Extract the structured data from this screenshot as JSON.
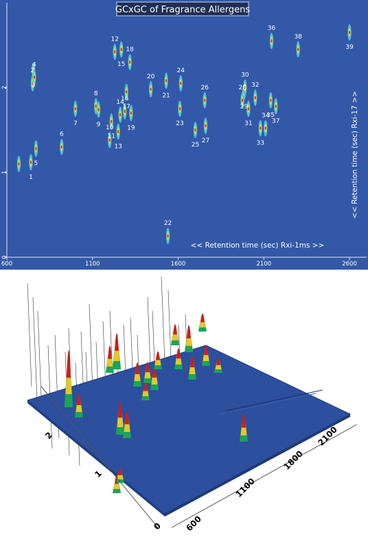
{
  "chart_data": [
    {
      "type": "scatter",
      "title": "GCxGC of Fragrance Allergens",
      "xlabel": "<< Retention time (sec) Rxi-1ms >>",
      "ylabel": "<< Retention time (sec) Rxi-17 >>",
      "xlim": [
        600,
        2700
      ],
      "ylim": [
        0,
        3
      ],
      "xticks": [
        "600",
        "1100",
        "1600",
        "2100",
        "2600"
      ],
      "yticks": [
        "0",
        "1",
        "2"
      ],
      "background": "#3358a8",
      "points": [
        {
          "label": "1",
          "x": 740,
          "y": 1.12
        },
        {
          "label": "2",
          "x": 750,
          "y": 2.05
        },
        {
          "label": "3",
          "x": 755,
          "y": 2.2
        },
        {
          "label": "4",
          "x": 760,
          "y": 2.12
        },
        {
          "label": "5",
          "x": 770,
          "y": 1.28
        },
        {
          "label": "6",
          "x": 920,
          "y": 1.3
        },
        {
          "label": "7",
          "x": 1000,
          "y": 1.75
        },
        {
          "label": "8",
          "x": 1120,
          "y": 1.78
        },
        {
          "label": "9",
          "x": 1135,
          "y": 1.74
        },
        {
          "label": "10",
          "x": 1200,
          "y": 1.38
        },
        {
          "label": "11",
          "x": 1210,
          "y": 1.6
        },
        {
          "label": "12",
          "x": 1230,
          "y": 2.42
        },
        {
          "label": "13",
          "x": 1250,
          "y": 1.48
        },
        {
          "label": "14",
          "x": 1262,
          "y": 1.68
        },
        {
          "label": "15",
          "x": 1268,
          "y": 2.45
        },
        {
          "label": "16",
          "x": 1288,
          "y": 1.72
        },
        {
          "label": "17",
          "x": 1298,
          "y": 1.95
        },
        {
          "label": "18",
          "x": 1318,
          "y": 2.3
        },
        {
          "label": "19",
          "x": 1325,
          "y": 1.7
        },
        {
          "label": "20",
          "x": 1440,
          "y": 1.98
        },
        {
          "label": "21",
          "x": 1530,
          "y": 2.08
        },
        {
          "label": "22",
          "x": 1540,
          "y": 0.25
        },
        {
          "label": "23",
          "x": 1610,
          "y": 1.75
        },
        {
          "label": "24",
          "x": 1615,
          "y": 2.05
        },
        {
          "label": "25",
          "x": 1700,
          "y": 1.5
        },
        {
          "label": "26",
          "x": 1755,
          "y": 1.85
        },
        {
          "label": "27",
          "x": 1760,
          "y": 1.55
        },
        {
          "label": "28",
          "x": 1975,
          "y": 1.85
        },
        {
          "label": "29",
          "x": 1985,
          "y": 1.95
        },
        {
          "label": "30",
          "x": 1990,
          "y": 2.0
        },
        {
          "label": "31",
          "x": 2010,
          "y": 1.75
        },
        {
          "label": "32",
          "x": 2050,
          "y": 1.88
        },
        {
          "label": "33",
          "x": 2080,
          "y": 1.52
        },
        {
          "label": "34",
          "x": 2110,
          "y": 1.52
        },
        {
          "label": "35",
          "x": 2140,
          "y": 1.85
        },
        {
          "label": "36",
          "x": 2145,
          "y": 2.55
        },
        {
          "label": "37",
          "x": 2170,
          "y": 1.78
        },
        {
          "label": "38",
          "x": 2300,
          "y": 2.45
        },
        {
          "label": "39",
          "x": 2600,
          "y": 2.65
        },
        {
          "label": "",
          "x": 670,
          "y": 1.1
        }
      ]
    },
    {
      "type": "surface-3d",
      "x_ticks": [
        "600",
        "1100",
        "1800",
        "2100"
      ],
      "y_ticks": [
        "0",
        "1",
        "2"
      ],
      "peaks_note": "3D surface view of the same GCxGC separation"
    }
  ]
}
